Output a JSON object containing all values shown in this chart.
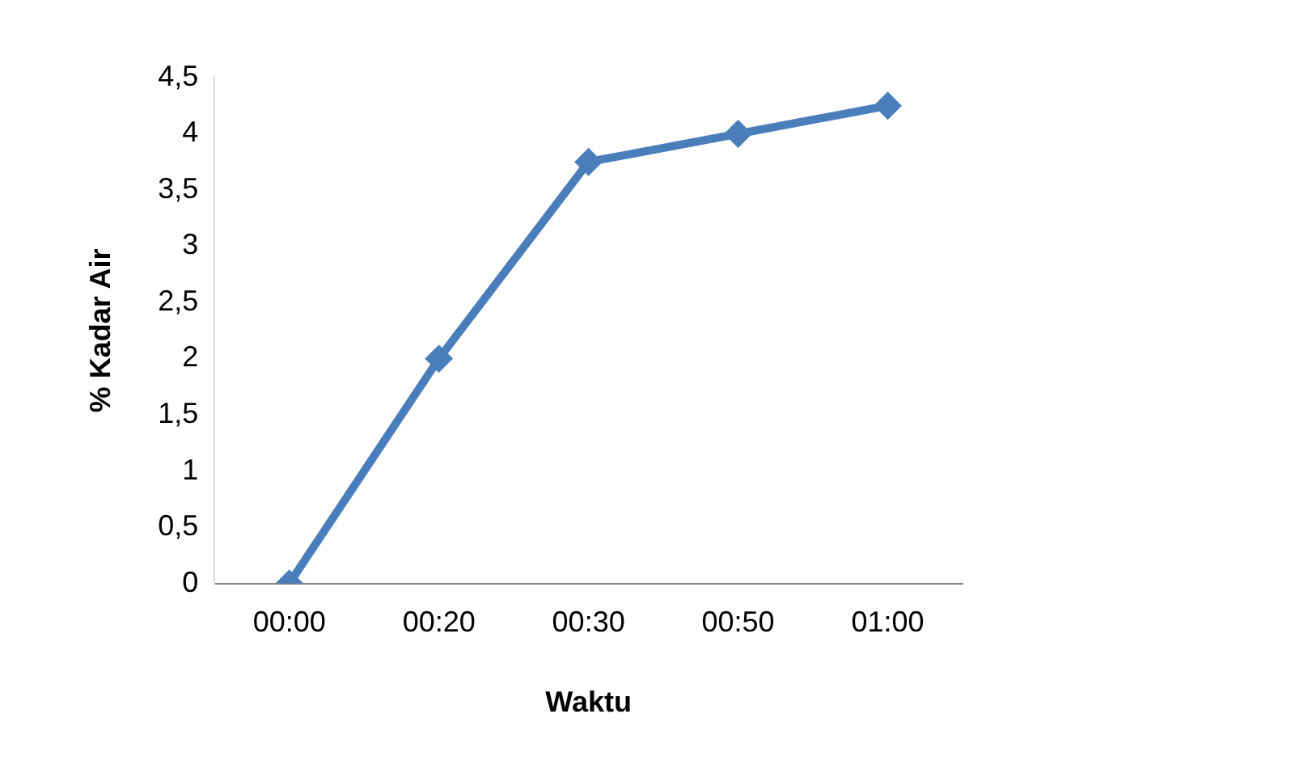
{
  "chart_data": {
    "type": "line",
    "xlabel": "Waktu",
    "ylabel": "% Kadar Air",
    "categories": [
      "00:00",
      "00:20",
      "00:30",
      "00:50",
      "01:00"
    ],
    "series": [
      {
        "color": "#4a7ebb",
        "values": [
          0,
          2,
          3.75,
          4,
          4.25
        ]
      }
    ],
    "ylim": [
      0,
      4.5
    ],
    "yticks": [
      0,
      {
        "value": 0.5,
        "label": "0,5"
      },
      1,
      {
        "value": 1.5,
        "label": "1,5"
      },
      2,
      {
        "value": 2.5,
        "label": "2,5"
      },
      3,
      {
        "value": 3.5,
        "label": "3,5"
      },
      4,
      {
        "value": 4.5,
        "label": "4,5"
      }
    ],
    "grid": false,
    "legend": false,
    "marker": "diamond",
    "line_style": "solid"
  }
}
